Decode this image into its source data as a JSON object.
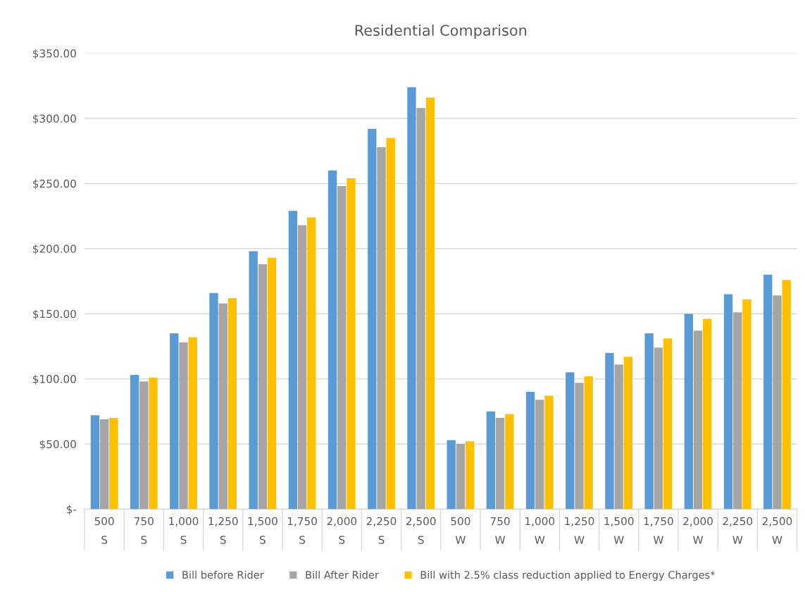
{
  "chart_data": {
    "type": "bar",
    "title": "Residential Comparison",
    "categories": [
      "500\nS",
      "750\nS",
      "1,000\nS",
      "1,250\nS",
      "1,500\nS",
      "1,750\nS",
      "2,000\nS",
      "2,250\nS",
      "2,500\nS",
      "500\nW",
      "750\nW",
      "1,000\nW",
      "1,250\nW",
      "1,500\nW",
      "1,750\nW",
      "2,000\nW",
      "2,250\nW",
      "2,500\nW"
    ],
    "series": [
      {
        "name": "Bill before Rider",
        "color": "#5b9bd5",
        "values": [
          72,
          103,
          135,
          166,
          198,
          229,
          260,
          292,
          324,
          53,
          75,
          90,
          105,
          120,
          135,
          150,
          165,
          180
        ]
      },
      {
        "name": "Bill After Rider",
        "color": "#a5a5a5",
        "values": [
          69,
          98,
          128,
          158,
          188,
          218,
          248,
          278,
          308,
          50,
          70,
          84,
          97,
          111,
          124,
          137,
          151,
          164
        ]
      },
      {
        "name": "Bill with 2.5% class reduction applied to Energy Charges*",
        "color": "#ffc000",
        "values": [
          70,
          101,
          132,
          162,
          193,
          224,
          254,
          285,
          316,
          52,
          73,
          87,
          102,
          117,
          131,
          146,
          161,
          176
        ]
      }
    ],
    "ylim": [
      0,
      350
    ],
    "yticks": [
      {
        "value": 0,
        "label": "$-"
      },
      {
        "value": 50,
        "label": "$50.00"
      },
      {
        "value": 100,
        "label": "$100.00"
      },
      {
        "value": 150,
        "label": "$150.00"
      },
      {
        "value": 200,
        "label": "$200.00"
      },
      {
        "value": 250,
        "label": "$250.00"
      },
      {
        "value": 300,
        "label": "$300.00"
      },
      {
        "value": 350,
        "label": "$350.00"
      }
    ],
    "grid": "y",
    "legend": "bottom"
  }
}
